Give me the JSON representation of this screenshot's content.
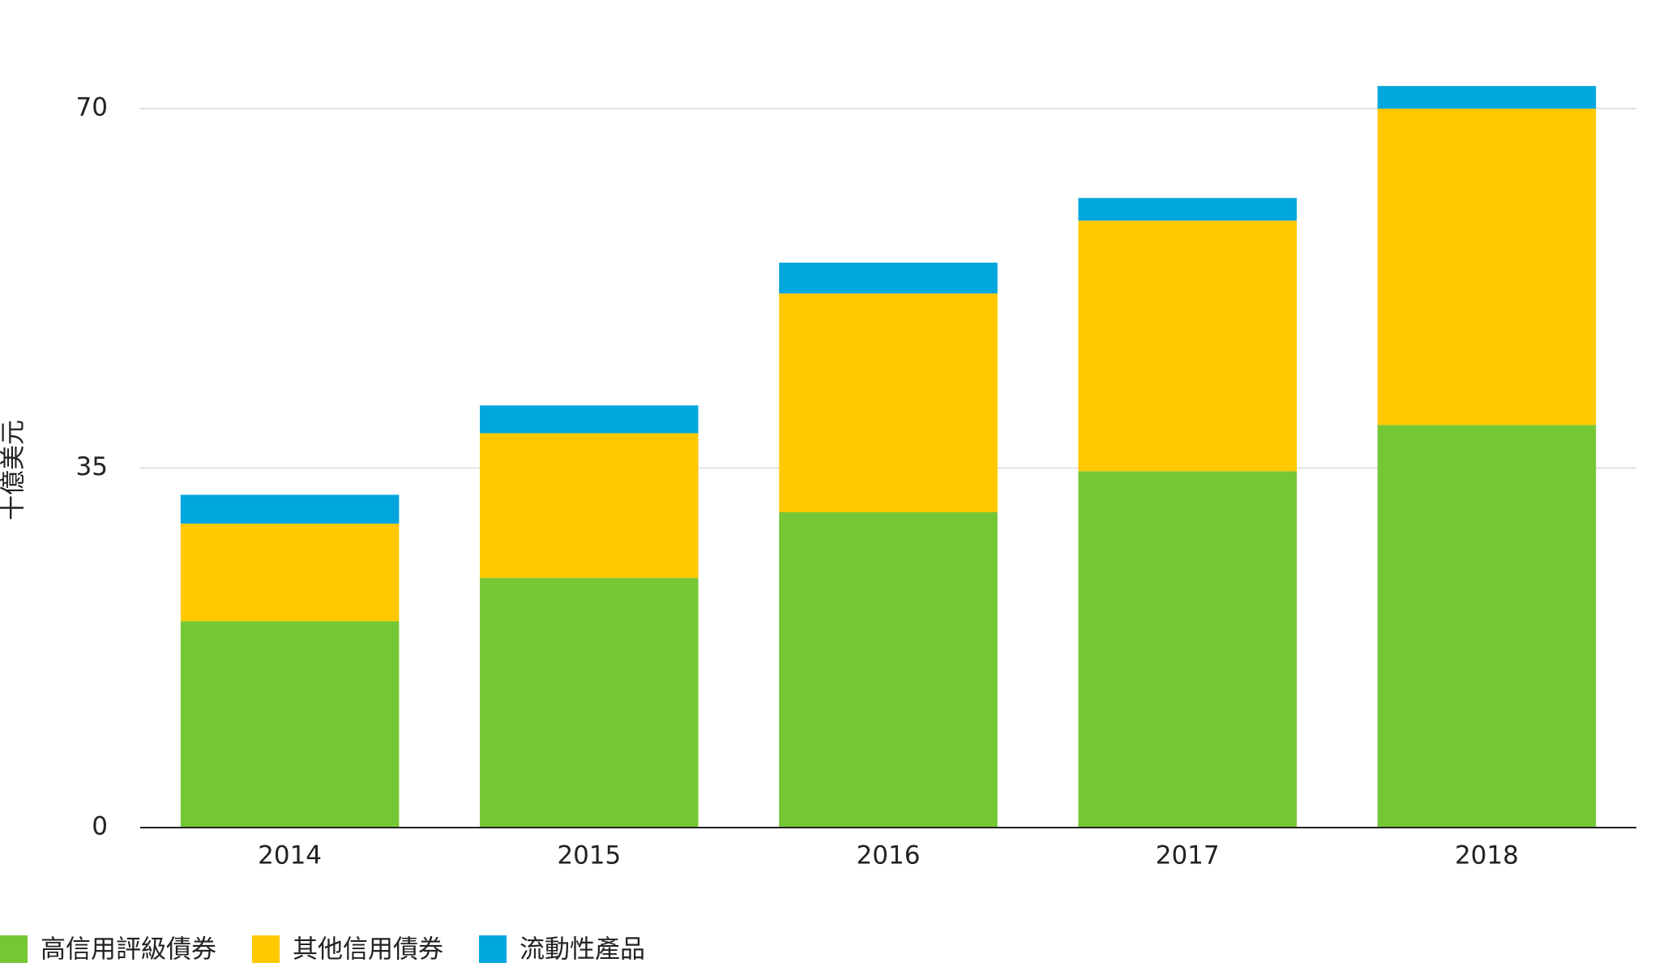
{
  "chart_data": {
    "type": "stacked_bar",
    "y_label": "十億美元",
    "categories": [
      "2014",
      "2015",
      "2016",
      "2017",
      "2018"
    ],
    "series": [
      {
        "name": "高信用評級債券",
        "color": "#76c734",
        "values": [
          20.1,
          24.3,
          30.7,
          34.7,
          39.2
        ]
      },
      {
        "name": "其他信用債券",
        "color": "#ffc800",
        "values": [
          9.5,
          14.1,
          21.3,
          24.4,
          30.8
        ]
      },
      {
        "name": "流動性產品",
        "color": "#00a6de",
        "values": [
          2.8,
          2.7,
          3.0,
          2.2,
          2.2
        ]
      }
    ],
    "ylim": [
      0,
      73
    ],
    "yticks": [
      0,
      35,
      70
    ],
    "grid": true,
    "legend": "bottom"
  }
}
